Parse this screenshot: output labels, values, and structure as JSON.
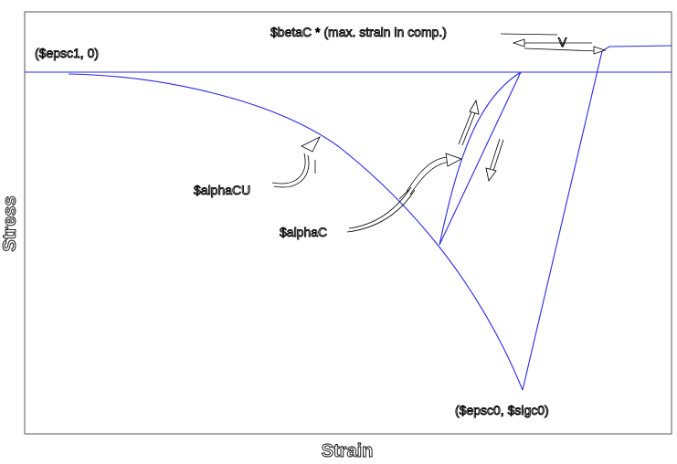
{
  "diagram": {
    "labels": {
      "origin_point": "($epsc1, 0)",
      "peak_point": "($epsc0, $sigc0)",
      "alphaCU": "$alphaCU",
      "alphaC": "$alphaC",
      "betaC": "$betaC * (max. strain in comp.)",
      "v_marker": "V"
    },
    "axes": {
      "xlabel": "Strain",
      "ylabel": "Stress"
    },
    "colors": {
      "curve": "#2a2ae6",
      "frame": "#555555",
      "annotation": "#000000"
    }
  }
}
